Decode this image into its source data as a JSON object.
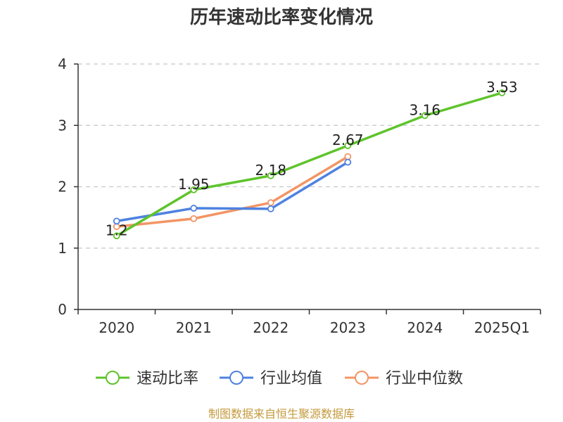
{
  "chart_data": {
    "type": "line",
    "title": "历年速动比率变化情况",
    "categories": [
      "2020",
      "2021",
      "2022",
      "2023",
      "2024",
      "2025Q1"
    ],
    "y_ticks": [
      "0",
      "1",
      "2",
      "3",
      "4"
    ],
    "ylim": [
      0,
      4
    ],
    "grid": "horizontal dashed",
    "legend_position": "bottom",
    "series": [
      {
        "name": "速动比率",
        "color": "#5ec42b",
        "values": [
          1.2,
          1.95,
          2.18,
          2.67,
          3.16,
          3.53
        ],
        "labels": [
          "1.2",
          "1.95",
          "2.18",
          "2.67",
          "3.16",
          "3.53"
        ],
        "show_labels": true
      },
      {
        "name": "行业均值",
        "color": "#4f82e0",
        "values": [
          1.44,
          1.65,
          1.64,
          2.4,
          null,
          null
        ],
        "show_labels": false
      },
      {
        "name": "行业中位数",
        "color": "#f39564",
        "values": [
          1.35,
          1.48,
          1.74,
          2.49,
          null,
          null
        ],
        "show_labels": false
      }
    ],
    "source": "制图数据来自恒生聚源数据库"
  }
}
